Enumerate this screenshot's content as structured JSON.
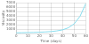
{
  "chart_data": {
    "type": "line",
    "xlabel": "Time (days)",
    "ylabel": "Viscosity",
    "x": [
      0,
      5,
      10,
      15,
      20,
      25,
      30,
      35,
      40,
      45,
      50,
      55,
      60
    ],
    "values": [
      150,
      170,
      200,
      230,
      270,
      340,
      430,
      580,
      820,
      1300,
      2200,
      3900,
      6800
    ],
    "color": "#88ddee",
    "xlim": [
      0,
      60
    ],
    "ylim": [
      0,
      7000
    ],
    "xticks": [
      0,
      10,
      20,
      30,
      40,
      50,
      60
    ],
    "yticks": [
      1000,
      2000,
      3000,
      4000,
      5000,
      6000,
      7000
    ],
    "grid": true
  }
}
